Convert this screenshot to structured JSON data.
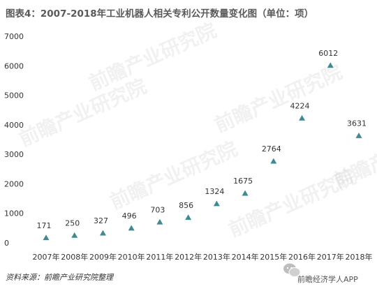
{
  "title": "图表4：2007-2018年工业机器人相关专利公开数量变化图（单位：项）",
  "source": "资料来源：前瞻产业研究院整理",
  "brand": "前瞻经济学人APP",
  "watermark": "前瞻产业研究院",
  "colors": {
    "marker": "#3f8a93",
    "text": "#333333",
    "title": "#5a5a5a"
  },
  "chart_data": {
    "type": "scatter",
    "title": "图表4：2007-2018年工业机器人相关专利公开数量变化图（单位：项）",
    "xlabel": "",
    "ylabel": "",
    "grid": false,
    "ylim": [
      0,
      7000
    ],
    "yticks": [
      0,
      1000,
      2000,
      3000,
      4000,
      5000,
      6000,
      7000
    ],
    "categories": [
      "2007年",
      "2008年",
      "2009年",
      "2010年",
      "2011年",
      "2012年",
      "2013年",
      "2014年",
      "2015年",
      "2016年",
      "2017年",
      "2018年"
    ],
    "values": [
      171,
      250,
      327,
      496,
      703,
      856,
      1324,
      1675,
      2764,
      4224,
      6012,
      3631
    ]
  }
}
